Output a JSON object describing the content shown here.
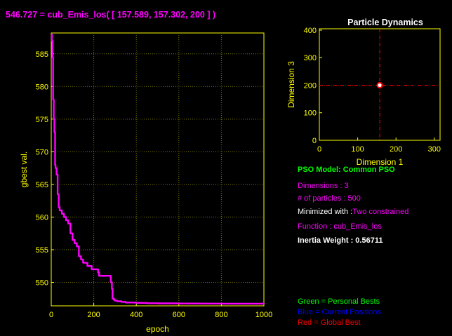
{
  "figure": {
    "background": "#000000",
    "axis_color": "#ffff00",
    "trace_color": "#ff00ff"
  },
  "chart_data": [
    {
      "type": "line",
      "title": "546.727 = cub_Emis_los( [   157.589,   157.302,        200 ] )",
      "xlabel": "epoch",
      "ylabel": "gbest val.",
      "xlim": [
        0,
        1000
      ],
      "ylim": [
        546.4,
        588.2
      ],
      "xticks": [
        0,
        200,
        400,
        600,
        800,
        1000
      ],
      "yticks": [
        550,
        555,
        560,
        565,
        570,
        575,
        580,
        585
      ],
      "grid": true,
      "series": [
        {
          "color": "#ff00ff",
          "x": [
            0,
            3,
            6,
            9,
            12,
            15,
            18,
            20,
            25,
            30,
            35,
            40,
            50,
            60,
            70,
            80,
            90,
            100,
            110,
            120,
            130,
            140,
            150,
            160,
            170,
            180,
            190,
            200,
            210,
            215,
            220,
            225,
            240,
            260,
            270,
            280,
            285,
            288,
            295,
            300,
            310,
            330,
            350,
            400,
            450,
            500,
            600,
            700,
            800,
            900,
            1000
          ],
          "y": [
            588.0,
            587.0,
            584.5,
            578.0,
            575.0,
            573.0,
            568.0,
            567.5,
            566.5,
            563.5,
            561.5,
            561.0,
            560.5,
            560.0,
            559.5,
            559.0,
            557.5,
            556.5,
            556.0,
            555.5,
            554.0,
            553.5,
            553.0,
            553.0,
            552.5,
            552.5,
            552.0,
            552.0,
            552.0,
            552.0,
            551.5,
            551.0,
            551.0,
            551.0,
            551.0,
            550.0,
            549.0,
            547.5,
            547.3,
            547.2,
            547.1,
            547.0,
            546.9,
            546.85,
            546.8,
            546.78,
            546.75,
            546.74,
            546.73,
            546.73,
            546.727
          ]
        }
      ]
    },
    {
      "type": "scatter",
      "title": "Particle Dynamics",
      "xlabel": "Dimension 1",
      "ylabel": "Dimension 3",
      "xlim": [
        0,
        315
      ],
      "ylim": [
        0,
        405
      ],
      "xticks": [
        0,
        100,
        200,
        300
      ],
      "yticks": [
        0,
        100,
        200,
        300,
        400
      ],
      "grid": false,
      "crosshair": {
        "x": 157.589,
        "y": 200,
        "color": "#ff0000"
      },
      "points": [
        {
          "x": 157.589,
          "y": 200,
          "color": "#ff0000"
        }
      ]
    }
  ],
  "info": {
    "model": {
      "text": "PSO Model: Common PSO",
      "color": "#00ff00"
    },
    "dimensions": {
      "text": "Dimensions : 3",
      "color": "#ff00ff"
    },
    "particles": {
      "text": "# of particles : 500",
      "color": "#ff00ff"
    },
    "minimized_label": {
      "text": "Minimized with :",
      "color": "#ffffff"
    },
    "minimized_value": {
      "text": "Two constrained",
      "color": "#ff00ff"
    },
    "function": {
      "text": "Function : cub_Emis_los",
      "color": "#ff00ff"
    },
    "inertia": {
      "text": "Inertia Weight : 0.56711",
      "color": "#ffffff"
    }
  },
  "legend": {
    "personal": {
      "text": "Green = Personal Bests",
      "color": "#00ff00"
    },
    "current": {
      "text": "Blue  = Current Positions",
      "color": "#0000ff"
    },
    "global": {
      "text": "Red   = Global Best",
      "color": "#ff0000"
    }
  }
}
